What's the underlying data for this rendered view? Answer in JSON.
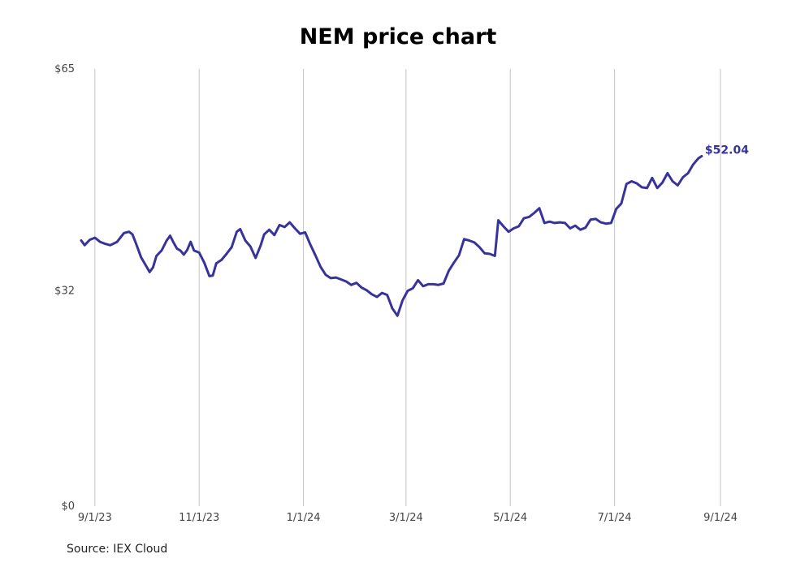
{
  "chart_data": {
    "type": "line",
    "title": "NEM price chart",
    "source": "Source: IEX Cloud",
    "xlabel": "",
    "ylabel": "",
    "ylim": [
      0,
      65
    ],
    "y_ticks": [
      {
        "value": 65,
        "label": "$65"
      },
      {
        "value": 32,
        "label": "$32"
      },
      {
        "value": 0,
        "label": "$0"
      }
    ],
    "x_ticks": [
      {
        "date": "2023-09-01",
        "label": "9/1/23"
      },
      {
        "date": "2023-11-01",
        "label": "11/1/23"
      },
      {
        "date": "2024-01-01",
        "label": "1/1/24"
      },
      {
        "date": "2024-03-01",
        "label": "3/1/24"
      },
      {
        "date": "2024-05-01",
        "label": "5/1/24"
      },
      {
        "date": "2024-07-01",
        "label": "7/1/24"
      },
      {
        "date": "2024-09-01",
        "label": "9/1/24"
      }
    ],
    "xlim": [
      "2023-08-24",
      "2024-09-10"
    ],
    "grid": "vertical",
    "line_color": "#38339a",
    "end_label": "$52.04",
    "series": [
      {
        "x": [
          "2023-08-24",
          "2023-08-26",
          "2023-08-29",
          "2023-09-01",
          "2023-09-04",
          "2023-09-07",
          "2023-09-10",
          "2023-09-14",
          "2023-09-18",
          "2023-09-21",
          "2023-09-23",
          "2023-09-25",
          "2023-09-28",
          "2023-10-01",
          "2023-10-03",
          "2023-10-05",
          "2023-10-07",
          "2023-10-10",
          "2023-10-13",
          "2023-10-15",
          "2023-10-17",
          "2023-10-19",
          "2023-10-21",
          "2023-10-23",
          "2023-10-25",
          "2023-10-27",
          "2023-10-29",
          "2023-11-01",
          "2023-11-04",
          "2023-11-07",
          "2023-11-09",
          "2023-11-11",
          "2023-11-14",
          "2023-11-17",
          "2023-11-20",
          "2023-11-23",
          "2023-11-25",
          "2023-11-28",
          "2023-12-01",
          "2023-12-04",
          "2023-12-07",
          "2023-12-09",
          "2023-12-12",
          "2023-12-15",
          "2023-12-18",
          "2023-12-21",
          "2023-12-24",
          "2023-12-27",
          "2023-12-30",
          "2024-01-02",
          "2024-01-05",
          "2024-01-08",
          "2024-01-11",
          "2024-01-14",
          "2024-01-17",
          "2024-01-20",
          "2024-01-23",
          "2024-01-26",
          "2024-01-29",
          "2024-02-01",
          "2024-02-04",
          "2024-02-07",
          "2024-02-10",
          "2024-02-13",
          "2024-02-16",
          "2024-02-19",
          "2024-02-22",
          "2024-02-25",
          "2024-02-28",
          "2024-03-02",
          "2024-03-05",
          "2024-03-08",
          "2024-03-11",
          "2024-03-14",
          "2024-03-17",
          "2024-03-20",
          "2024-03-23",
          "2024-03-26",
          "2024-03-29",
          "2024-04-01",
          "2024-04-04",
          "2024-04-07",
          "2024-04-10",
          "2024-04-13",
          "2024-04-16",
          "2024-04-19",
          "2024-04-22",
          "2024-04-24",
          "2024-04-27",
          "2024-04-30",
          "2024-05-03",
          "2024-05-06",
          "2024-05-09",
          "2024-05-12",
          "2024-05-15",
          "2024-05-18",
          "2024-05-21",
          "2024-05-24",
          "2024-05-27",
          "2024-05-30",
          "2024-06-02",
          "2024-06-05",
          "2024-06-08",
          "2024-06-11",
          "2024-06-14",
          "2024-06-17",
          "2024-06-20",
          "2024-06-23",
          "2024-06-26",
          "2024-06-29",
          "2024-07-02",
          "2024-07-05",
          "2024-07-08",
          "2024-07-11",
          "2024-07-14",
          "2024-07-17",
          "2024-07-20",
          "2024-07-23",
          "2024-07-26",
          "2024-07-29",
          "2024-08-01",
          "2024-08-04",
          "2024-08-07",
          "2024-08-10",
          "2024-08-13",
          "2024-08-16",
          "2024-08-19",
          "2024-08-21"
        ],
        "values": [
          39.5,
          38.8,
          39.6,
          39.9,
          39.3,
          39.0,
          38.8,
          39.3,
          40.6,
          40.8,
          40.4,
          39.1,
          37.0,
          35.7,
          34.8,
          35.5,
          37.2,
          38.0,
          39.5,
          40.2,
          39.2,
          38.3,
          38.0,
          37.4,
          38.1,
          39.3,
          38.0,
          37.7,
          36.2,
          34.2,
          34.3,
          36.1,
          36.6,
          37.5,
          38.5,
          40.8,
          41.2,
          39.5,
          38.6,
          36.9,
          38.8,
          40.4,
          41.1,
          40.3,
          41.8,
          41.5,
          42.2,
          41.3,
          40.5,
          40.7,
          38.9,
          37.3,
          35.6,
          34.4,
          33.9,
          34.0,
          33.7,
          33.4,
          32.9,
          33.2,
          32.5,
          32.1,
          31.5,
          31.1,
          31.7,
          31.4,
          29.4,
          28.3,
          30.6,
          32.0,
          32.4,
          33.6,
          32.7,
          33.0,
          33.0,
          32.9,
          33.1,
          35.0,
          36.2,
          37.3,
          39.7,
          39.5,
          39.2,
          38.5,
          37.6,
          37.5,
          37.2,
          42.5,
          41.6,
          40.8,
          41.3,
          41.6,
          42.8,
          43.0,
          43.6,
          44.3,
          42.1,
          42.3,
          42.1,
          42.2,
          42.1,
          41.3,
          41.7,
          41.1,
          41.4,
          42.6,
          42.7,
          42.2,
          42.0,
          42.1,
          44.2,
          45.0,
          47.9,
          48.3,
          48.0,
          47.4,
          47.3,
          48.8,
          47.3,
          48.1,
          49.5,
          48.3,
          47.7,
          48.9,
          49.5,
          50.8,
          51.7,
          52.04
        ]
      }
    ]
  }
}
